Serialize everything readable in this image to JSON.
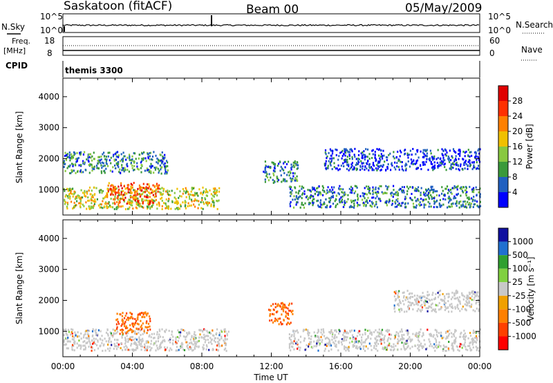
{
  "header": {
    "station": "Saskatoon (fitACF)",
    "beam": "Beam 00",
    "date": "05/May/2009"
  },
  "summary_panels": {
    "nsky_label": "N.Sky",
    "nsearch_label": "N.Search",
    "noise_ticks": [
      "10^5",
      "10^0"
    ],
    "freq_label_1": "Freq.",
    "freq_label_2": "[MHz]",
    "freq_ticks": [
      "18",
      "8"
    ],
    "nave_label": "Nave",
    "nave_ticks": [
      "60",
      "0"
    ],
    "cpid_label": "CPID",
    "cpid_value": "themis 3300"
  },
  "colors": {
    "power": [
      "#0000ff",
      "#2060c0",
      "#3a9a3a",
      "#88c840",
      "#f0c000",
      "#ff8000",
      "#ff3000",
      "#e00000"
    ],
    "velocity": [
      "#1010a0",
      "#2070d0",
      "#30a030",
      "#80d040",
      "#c8c8c8",
      "#f0a000",
      "#ff8000",
      "#ff4000",
      "#ff0000"
    ]
  },
  "chart_data": [
    {
      "type": "heatmap",
      "title": "Power",
      "xlabel": "",
      "ylabel": "Slant Range [km]",
      "x_ticks": [
        "00:00",
        "04:00",
        "08:00",
        "12:00",
        "16:00",
        "20:00",
        "00:00"
      ],
      "y_ticks": [
        1000,
        2000,
        3000,
        4000
      ],
      "ylim": [
        180,
        4600
      ],
      "colorbar_label": "Power [dB]",
      "colorbar_ticks": [
        4,
        8,
        12,
        16,
        20,
        24,
        28
      ],
      "features": [
        {
          "start_hr": 0.0,
          "end_hr": 9.0,
          "range_km": 750,
          "level_db": 20
        },
        {
          "start_hr": 2.5,
          "end_hr": 5.5,
          "range_km": 900,
          "level_db": 28
        },
        {
          "start_hr": 0.0,
          "end_hr": 6.0,
          "range_km": 1900,
          "level_db": 12
        },
        {
          "start_hr": 11.5,
          "end_hr": 13.5,
          "range_km": 1600,
          "level_db": 12
        },
        {
          "start_hr": 13.0,
          "end_hr": 24.0,
          "range_km": 800,
          "level_db": 12
        },
        {
          "start_hr": 15.0,
          "end_hr": 24.0,
          "range_km": 2000,
          "level_db": 8
        }
      ]
    },
    {
      "type": "heatmap",
      "title": "Velocity",
      "xlabel": "Time UT",
      "ylabel": "Slant Range [km]",
      "x_ticks": [
        "00:00",
        "04:00",
        "08:00",
        "12:00",
        "16:00",
        "20:00",
        "00:00"
      ],
      "y_ticks": [
        1000,
        2000,
        3000,
        4000
      ],
      "ylim": [
        180,
        4600
      ],
      "colorbar_label": "Velocity [m s⁻¹]",
      "colorbar_ticks": [
        1000,
        500,
        100,
        25,
        -25,
        -100,
        -500,
        -1000
      ],
      "features": [
        {
          "start_hr": 0.0,
          "end_hr": 9.5,
          "range_km": 750,
          "velocity": 0
        },
        {
          "start_hr": 3.0,
          "end_hr": 5.0,
          "range_km": 1300,
          "velocity": -400
        },
        {
          "start_hr": 11.8,
          "end_hr": 13.2,
          "range_km": 1600,
          "velocity": -300
        },
        {
          "start_hr": 13.0,
          "end_hr": 24.0,
          "range_km": 750,
          "velocity": 0
        },
        {
          "start_hr": 19.0,
          "end_hr": 24.0,
          "range_km": 2000,
          "velocity": 0
        }
      ]
    }
  ]
}
